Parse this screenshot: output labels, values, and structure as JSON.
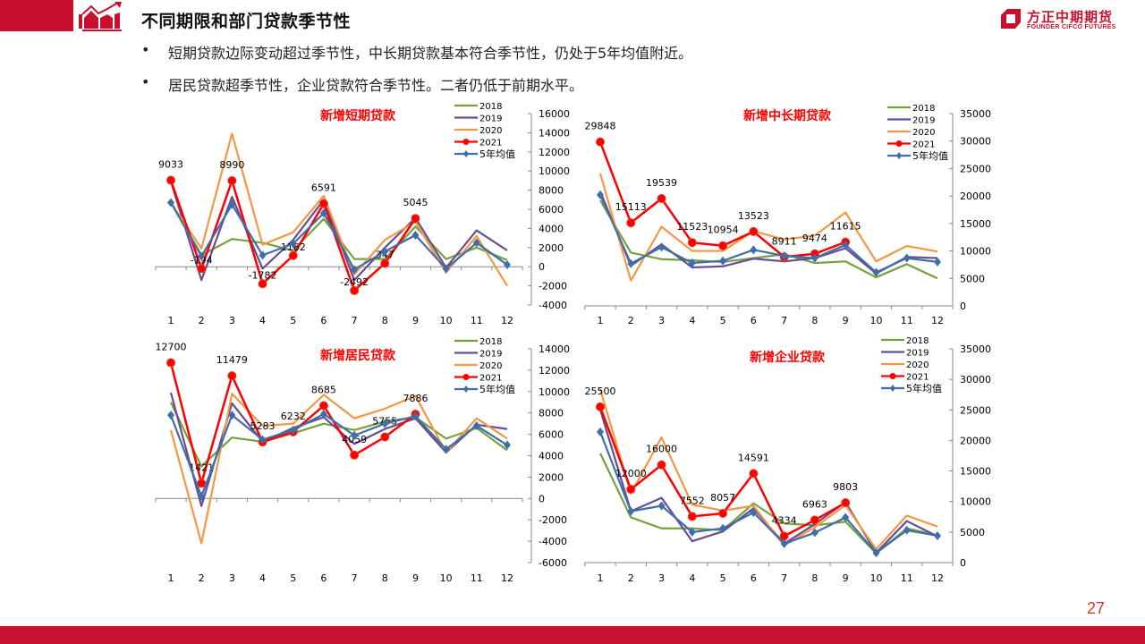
{
  "header": {
    "title": "不同期限和部门贷款季节性",
    "logo_cn": "方正中期期货",
    "logo_en": "FOUNDER CIFCO FUTURES"
  },
  "bullets": [
    {
      "dot": "•",
      "text": "短期贷款边际变动超过季节性，中长期贷款基本符合季节性，仍处于5年均值附近。"
    },
    {
      "dot": "•",
      "text": "居民贷款超季节性，企业贷款符合季节性。二者仍低于前期水平。"
    }
  ],
  "page_number": "27",
  "colors": {
    "brand_red": "#c8102e",
    "s2018": "#77a13f",
    "s2019": "#6a4c93",
    "s2020": "#f29845",
    "s2021": "#ff0000",
    "avg": "#3f6ea8"
  },
  "chart_data": [
    {
      "id": "short",
      "type": "line",
      "title": "新增短期贷款",
      "categories": [
        "1",
        "2",
        "3",
        "4",
        "5",
        "6",
        "7",
        "8",
        "9",
        "10",
        "11",
        "12"
      ],
      "ylim": [
        -4000,
        16000
      ],
      "yticks": [
        -4000,
        -2000,
        0,
        2000,
        4000,
        6000,
        8000,
        10000,
        12000,
        14000,
        16000
      ],
      "legend": [
        "2018",
        "2019",
        "2020",
        "2021",
        "5年均值"
      ],
      "legend_position": "top-right",
      "series": [
        {
          "name": "2018",
          "values": [
            6800,
            1200,
            2900,
            2500,
            1700,
            5000,
            800,
            800,
            4200,
            800,
            2000,
            700
          ]
        },
        {
          "name": "2019",
          "values": [
            8900,
            -1400,
            7300,
            -200,
            2800,
            7000,
            -1400,
            2000,
            5100,
            -100,
            3800,
            1700
          ]
        },
        {
          "name": "2020",
          "values": [
            6700,
            1900,
            13900,
            2300,
            3600,
            7400,
            -800,
            2800,
            4700,
            -600,
            3200,
            -2000
          ]
        },
        {
          "name": "2021",
          "values": [
            9033,
            -194,
            8990,
            -1782,
            1162,
            6591,
            -2492,
            347,
            5045,
            null,
            null,
            null
          ],
          "labels": [
            "9033",
            "-194",
            "8990",
            "-1782",
            "1162",
            "6591",
            "-2492",
            "347",
            "5045"
          ]
        },
        {
          "name": "5年均值",
          "values": [
            6700,
            1100,
            6500,
            1200,
            2400,
            5600,
            -300,
            1600,
            3300,
            -200,
            2500,
            200
          ]
        }
      ]
    },
    {
      "id": "midlong",
      "type": "line",
      "title": "新增中长期贷款",
      "categories": [
        "1",
        "2",
        "3",
        "4",
        "5",
        "6",
        "7",
        "8",
        "9",
        "10",
        "11",
        "12"
      ],
      "ylim": [
        0,
        35000
      ],
      "yticks": [
        0,
        5000,
        10000,
        15000,
        20000,
        25000,
        30000,
        35000
      ],
      "legend": [
        "2018",
        "2019",
        "2020",
        "2021",
        "5年均值"
      ],
      "legend_position": "top-right",
      "series": [
        {
          "name": "2018",
          "values": [
            19200,
            9700,
            8500,
            8300,
            8000,
            8700,
            9400,
            7800,
            8100,
            5200,
            7600,
            5000
          ]
        },
        {
          "name": "2019",
          "values": [
            20800,
            7300,
            11200,
            7000,
            7200,
            8600,
            8100,
            8700,
            10500,
            5900,
            8900,
            8700
          ]
        },
        {
          "name": "2020",
          "values": [
            24100,
            4600,
            14400,
            10000,
            10000,
            13600,
            12100,
            12800,
            17000,
            8100,
            10900,
            9900
          ]
        },
        {
          "name": "2021",
          "values": [
            29848,
            15113,
            19539,
            11523,
            10954,
            13523,
            8911,
            9474,
            11615,
            null,
            null,
            null
          ],
          "labels": [
            "29848",
            "15113",
            "19539",
            "11523",
            "10954",
            "13523",
            "8911",
            "9474",
            "11615"
          ]
        },
        {
          "name": "5年均值",
          "values": [
            20200,
            7700,
            10700,
            7800,
            8200,
            10200,
            9100,
            8700,
            11100,
            6100,
            8700,
            8000
          ]
        }
      ]
    },
    {
      "id": "household",
      "type": "line",
      "title": "新增居民贷款",
      "categories": [
        "1",
        "2",
        "3",
        "4",
        "5",
        "6",
        "7",
        "8",
        "9",
        "10",
        "11",
        "12"
      ],
      "ylim": [
        -6000,
        14000
      ],
      "yticks": [
        -6000,
        -4000,
        -2000,
        0,
        2000,
        4000,
        6000,
        8000,
        10000,
        12000,
        14000
      ],
      "legend": [
        "2018",
        "2019",
        "2020",
        "2021",
        "5年均值"
      ],
      "legend_position": "top-right",
      "series": [
        {
          "name": "2018",
          "values": [
            9000,
            3000,
            5700,
            5300,
            6100,
            7000,
            6400,
            7200,
            7600,
            5600,
            6600,
            4500
          ]
        },
        {
          "name": "2019",
          "values": [
            9900,
            -700,
            8900,
            5300,
            6600,
            7600,
            5100,
            6500,
            7500,
            4300,
            6900,
            6500
          ]
        },
        {
          "name": "2020",
          "values": [
            6400,
            -4200,
            9800,
            6800,
            7000,
            9700,
            7500,
            8400,
            9600,
            4300,
            7500,
            5600
          ]
        },
        {
          "name": "2021",
          "values": [
            12700,
            1421,
            11479,
            5283,
            6232,
            8685,
            4059,
            5755,
            7886,
            null,
            null,
            null
          ],
          "labels": [
            "12700",
            "1421",
            "11479",
            "5283",
            "6232",
            "8685",
            "4059",
            "5755",
            "7886"
          ]
        },
        {
          "name": "5年均值",
          "values": [
            7800,
            200,
            7800,
            5500,
            6400,
            7900,
            5900,
            7000,
            7700,
            4600,
            6800,
            5000
          ]
        }
      ]
    },
    {
      "id": "corporate",
      "type": "line",
      "title": "新增企业贷款",
      "categories": [
        "1",
        "2",
        "3",
        "4",
        "5",
        "6",
        "7",
        "8",
        "9",
        "10",
        "11",
        "12"
      ],
      "ylim": [
        0,
        35000
      ],
      "yticks": [
        0,
        5000,
        10000,
        15000,
        20000,
        25000,
        30000,
        35000
      ],
      "legend": [
        "2018",
        "2019",
        "2020",
        "2021",
        "5年均值"
      ],
      "legend_position": "top-right",
      "series": [
        {
          "name": "2018",
          "values": [
            17900,
            7400,
            5600,
            5600,
            5300,
            9700,
            6400,
            6100,
            6700,
            1500,
            5600,
            4500
          ]
        },
        {
          "name": "2019",
          "values": [
            25000,
            8400,
            10600,
            3500,
            5100,
            8900,
            3100,
            6300,
            9900,
            1600,
            6800,
            4300
          ]
        },
        {
          "name": "2020",
          "values": [
            28400,
            11300,
            20500,
            9500,
            8500,
            9300,
            2800,
            5800,
            9400,
            2200,
            7700,
            5900
          ]
        },
        {
          "name": "2021",
          "values": [
            25500,
            12000,
            16000,
            7552,
            8057,
            14591,
            4334,
            6963,
            9803,
            null,
            null,
            null
          ],
          "labels": [
            "25500",
            "12000",
            "16000",
            "7552",
            "8057",
            "14591",
            "4334",
            "6963",
            "9803"
          ]
        },
        {
          "name": "5年均值",
          "values": [
            21400,
            8400,
            9300,
            5000,
            5600,
            8200,
            3100,
            4900,
            7400,
            1600,
            5300,
            4400
          ]
        }
      ]
    }
  ]
}
